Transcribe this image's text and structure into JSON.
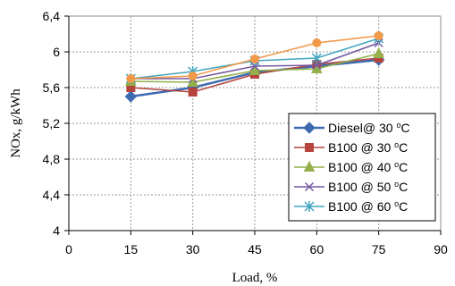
{
  "chart_data": {
    "type": "line",
    "xlabel": "Load, %",
    "ylabel": "NOx, g/kWh",
    "xlim": [
      0,
      90
    ],
    "ylim": [
      4,
      6.4
    ],
    "x_ticks": [
      "0",
      "15",
      "30",
      "45",
      "60",
      "75",
      "90"
    ],
    "y_ticks": [
      "4",
      "4,4",
      "4,8",
      "5,2",
      "5,6",
      "6",
      "6,4"
    ],
    "grid": true,
    "legend_position": "bottom-right",
    "x": [
      15,
      30,
      45,
      60,
      75
    ],
    "series": [
      {
        "name": "Diesel@ 30",
        "unit": "oC",
        "color": "#3e6ab0",
        "marker": "diamond",
        "values": [
          5.5,
          5.6,
          5.77,
          5.84,
          5.91
        ]
      },
      {
        "name": "B100 @ 30",
        "unit": "oC",
        "color": "#b5443e",
        "marker": "square",
        "values": [
          5.6,
          5.55,
          5.75,
          5.86,
          5.93
        ]
      },
      {
        "name": "B100 @ 40",
        "unit": "oC",
        "color": "#93b04a",
        "marker": "triangle",
        "values": [
          5.67,
          5.66,
          5.79,
          5.81,
          5.98
        ]
      },
      {
        "name": "B100 @ 50",
        "unit": "oC",
        "color": "#7558a0",
        "marker": "x",
        "values": [
          5.7,
          5.7,
          5.84,
          5.85,
          6.1
        ]
      },
      {
        "name": "B100 @ 60",
        "unit": "oC",
        "color": "#44a5c0",
        "marker": "star",
        "values": [
          5.7,
          5.78,
          5.9,
          5.93,
          6.15
        ]
      },
      {
        "name": "",
        "color": "#f29a4a",
        "marker": "circle",
        "values": [
          5.7,
          5.73,
          5.92,
          6.1,
          6.18
        ]
      }
    ]
  }
}
